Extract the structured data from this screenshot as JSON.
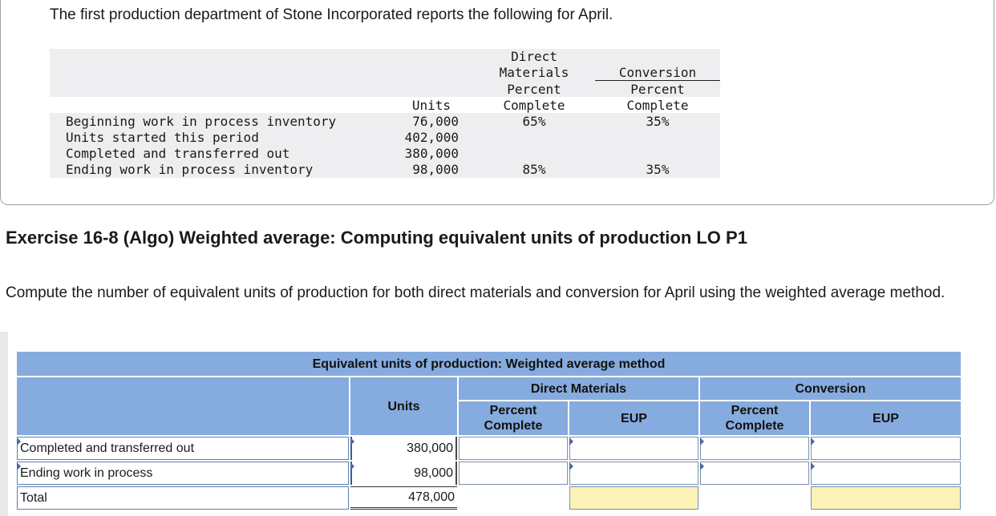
{
  "problem": {
    "intro": "The first production department of Stone Incorporated reports the following for April.",
    "headers": {
      "units": "Units",
      "dm": [
        "Direct",
        "Materials",
        "Percent",
        "Complete"
      ],
      "conv": [
        "Conversion",
        "Percent",
        "Complete"
      ]
    },
    "rows": [
      {
        "label": "Beginning work in process inventory",
        "units": "76,000",
        "dm": "65%",
        "conv": "35%"
      },
      {
        "label": "Units started this period",
        "units": "402,000",
        "dm": "",
        "conv": ""
      },
      {
        "label": "Completed and transferred out",
        "units": "380,000",
        "dm": "",
        "conv": ""
      },
      {
        "label": "Ending work in process inventory",
        "units": "98,000",
        "dm": "85%",
        "conv": "35%"
      }
    ]
  },
  "exercise": {
    "title": "Exercise 16-8 (Algo) Weighted average: Computing equivalent units of production LO P1",
    "instruction": "Compute the number of equivalent units of production for both direct materials and conversion for April using the weighted average method."
  },
  "worksheet": {
    "title": "Equivalent units of production: Weighted average method",
    "units_header": "Units",
    "dm_header": "Direct Materials",
    "conv_header": "Conversion",
    "pct_header": [
      "Percent",
      "Complete"
    ],
    "eup_header": "EUP",
    "rows": [
      {
        "label": "Completed and transferred out",
        "units": "380,000"
      },
      {
        "label": "Ending work in process",
        "units": "98,000"
      },
      {
        "label": "Total",
        "units": "478,000"
      }
    ]
  },
  "colors": {
    "header_blue": "#86abde",
    "total_fill": "#fcf2b8",
    "given_shade": "#eeeef0"
  }
}
